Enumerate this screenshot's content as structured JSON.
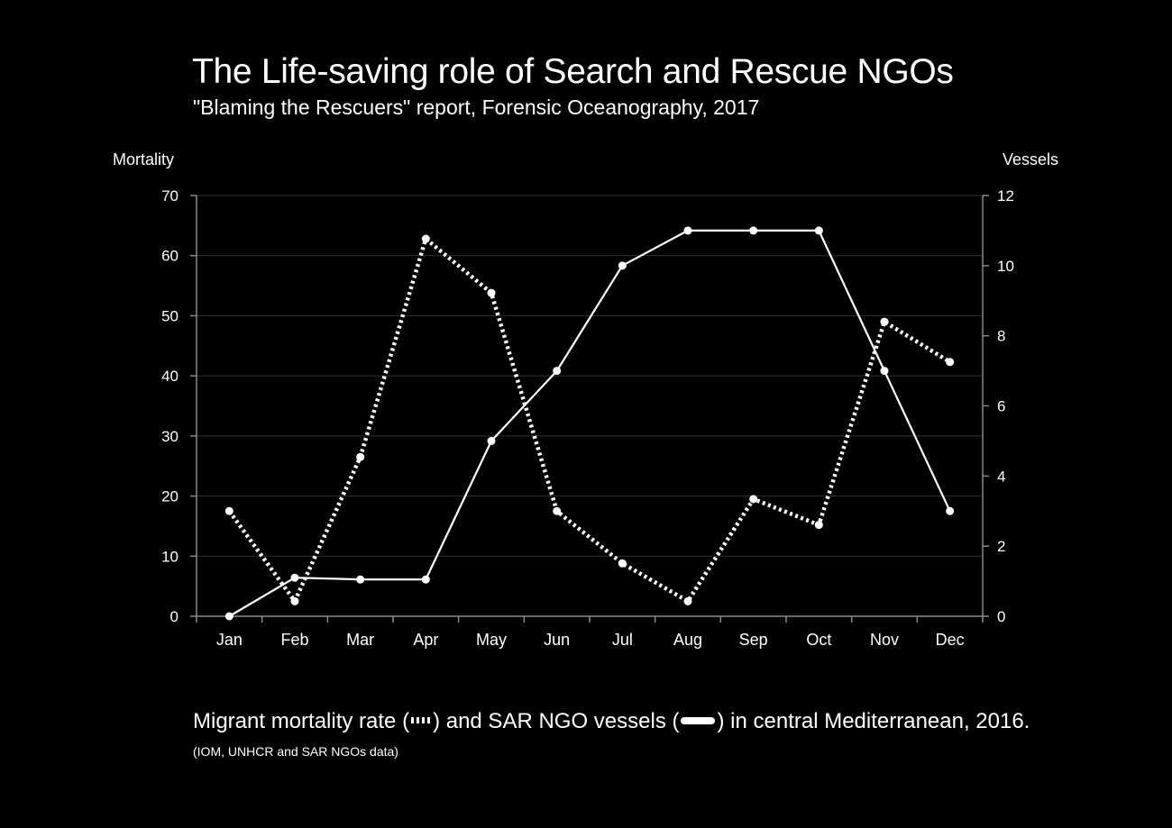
{
  "title": "The Life-saving role of Search and Rescue NGOs",
  "subtitle": "\"Blaming the Rescuers\" report, Forensic Oceanography, 2017",
  "caption": {
    "part1": "Migrant mortality rate (",
    "part2": ") and SAR NGO vessels (",
    "part3": ") in central Mediterranean, 2016."
  },
  "source": "(IOM, UNHCR and SAR NGOs data)",
  "chart_data": {
    "type": "line",
    "categories": [
      "Jan",
      "Feb",
      "Mar",
      "Apr",
      "May",
      "Jun",
      "Jul",
      "Aug",
      "Sep",
      "Oct",
      "Nov",
      "Dec"
    ],
    "y_left": {
      "label": "Mortality",
      "range": [
        0,
        70
      ],
      "ticks": [
        0,
        10,
        20,
        30,
        40,
        50,
        60,
        70
      ]
    },
    "y_right": {
      "label": "Vessels",
      "range": [
        0,
        12
      ],
      "ticks": [
        0,
        2,
        4,
        6,
        8,
        10,
        12
      ]
    },
    "grid": true,
    "series": [
      {
        "axis": "left",
        "style": "dotted",
        "values": [
          17.5,
          2.5,
          26.5,
          62.8,
          53.8,
          17.5,
          8.8,
          2.5,
          19.5,
          15.2,
          49.0,
          42.3
        ]
      },
      {
        "axis": "right",
        "style": "solid",
        "values": [
          0,
          1.1,
          1.05,
          1.05,
          5.0,
          7.0,
          10.0,
          11.0,
          11.0,
          11.0,
          7.0,
          3.0
        ]
      }
    ],
    "colors": {
      "background": "#000000",
      "foreground": "#ffffff",
      "grid": "#333333",
      "axis": "#8a8a8a"
    }
  }
}
